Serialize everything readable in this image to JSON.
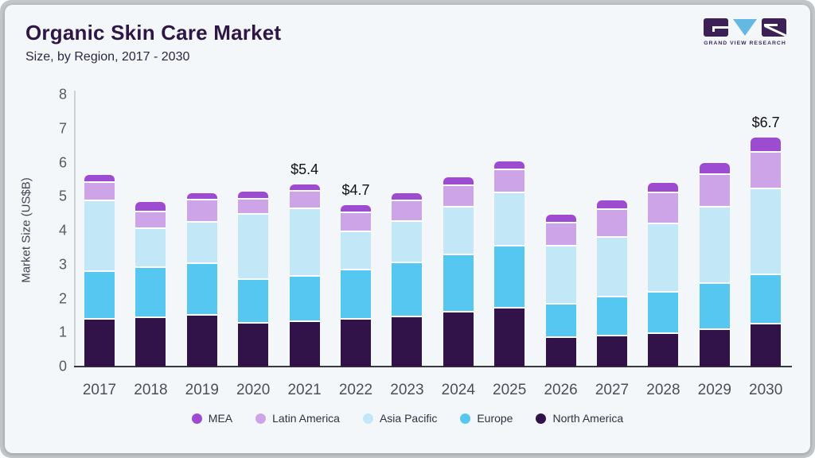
{
  "header": {
    "title": "Organic Skin Care Market",
    "subtitle": "Size, by Region, 2017 - 2030"
  },
  "logo": {
    "brand": "GRAND VIEW RESEARCH"
  },
  "chart_data": {
    "type": "bar",
    "stacked": true,
    "title": "Organic Skin Care Market",
    "subtitle": "Size, by Region, 2017 - 2030",
    "xlabel": "",
    "ylabel": "Market Size (US$B)",
    "ylim": [
      0,
      8
    ],
    "yticks": [
      0,
      1,
      2,
      3,
      4,
      5,
      6,
      7,
      8
    ],
    "grid": false,
    "legend_position": "bottom",
    "categories": [
      "2017",
      "2018",
      "2019",
      "2020",
      "2021",
      "2022",
      "2023",
      "2024",
      "2025",
      "2026",
      "2027",
      "2028",
      "2029",
      "2030"
    ],
    "series": [
      {
        "name": "North America",
        "color": "#321349",
        "values": [
          1.38,
          1.42,
          1.5,
          1.26,
          1.31,
          1.37,
          1.45,
          1.6,
          1.71,
          0.84,
          0.9,
          0.95,
          1.08,
          1.25
        ]
      },
      {
        "name": "Europe",
        "color": "#56c7f1",
        "values": [
          1.4,
          1.47,
          1.52,
          1.29,
          1.33,
          1.46,
          1.6,
          1.68,
          1.83,
          0.99,
          1.13,
          1.22,
          1.36,
          1.44
        ]
      },
      {
        "name": "Asia Pacific",
        "color": "#c2e7f7",
        "values": [
          2.08,
          1.15,
          1.21,
          1.92,
          2.0,
          1.13,
          1.21,
          1.39,
          1.55,
          1.7,
          1.77,
          2.02,
          2.23,
          2.52
        ]
      },
      {
        "name": "Latin America",
        "color": "#cda4e8",
        "values": [
          0.55,
          0.5,
          0.65,
          0.45,
          0.5,
          0.55,
          0.6,
          0.64,
          0.69,
          0.69,
          0.82,
          0.9,
          0.96,
          1.09
        ]
      },
      {
        "name": "MEA",
        "color": "#9d4cd2",
        "values": [
          0.22,
          0.3,
          0.23,
          0.23,
          0.21,
          0.23,
          0.25,
          0.25,
          0.25,
          0.25,
          0.28,
          0.31,
          0.37,
          0.43
        ]
      }
    ],
    "legend": [
      {
        "label": "MEA",
        "color": "#9d4cd2"
      },
      {
        "label": "Latin America",
        "color": "#cda4e8"
      },
      {
        "label": "Asia Pacific",
        "color": "#c2e7f7"
      },
      {
        "label": "Europe",
        "color": "#56c7f1"
      },
      {
        "label": "North America",
        "color": "#321349"
      }
    ],
    "annotations": [
      {
        "category": "2021",
        "label": "$5.4"
      },
      {
        "category": "2022",
        "label": "$4.7"
      },
      {
        "category": "2030",
        "label": "$6.7"
      }
    ]
  }
}
